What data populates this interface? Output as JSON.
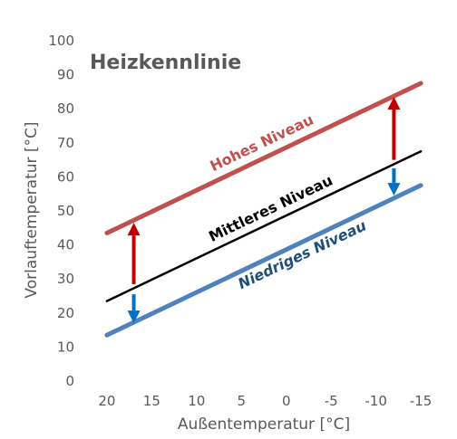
{
  "chart_data": {
    "type": "line",
    "title": "Heizkennlinie",
    "xlabel": "Außentemperatur [°C]",
    "ylabel": "Vorlauftemperatur [°C]",
    "x_ticks": [
      20,
      15,
      10,
      5,
      0,
      -5,
      -10,
      -15
    ],
    "y_ticks": [
      0,
      10,
      20,
      30,
      40,
      50,
      60,
      70,
      80,
      90,
      100
    ],
    "xlim": [
      21,
      -16
    ],
    "ylim": [
      0,
      100
    ],
    "x_reversed": true,
    "grid": false,
    "series": [
      {
        "name": "Hohes Niveau",
        "color": "#C0504D",
        "x": [
          20,
          -15
        ],
        "y": [
          43.5,
          87.5
        ]
      },
      {
        "name": "Mittleres Niveau",
        "color": "#000000",
        "x": [
          20,
          -15
        ],
        "y": [
          23.5,
          67.5
        ]
      },
      {
        "name": "Niedriges Niveau",
        "color": "#4F81BD",
        "x": [
          20,
          -15
        ],
        "y": [
          13.5,
          57.5
        ]
      }
    ],
    "arrows": [
      {
        "color": "#C00000",
        "x": 17,
        "from": 28.5,
        "to": 46.5
      },
      {
        "color": "#0070C0",
        "x": 17,
        "from": 25.5,
        "to": 17
      },
      {
        "color": "#C00000",
        "x": -12,
        "from": 65,
        "to": 83.5
      },
      {
        "color": "#0070C0",
        "x": -12,
        "from": 62.5,
        "to": 54.5
      }
    ]
  }
}
